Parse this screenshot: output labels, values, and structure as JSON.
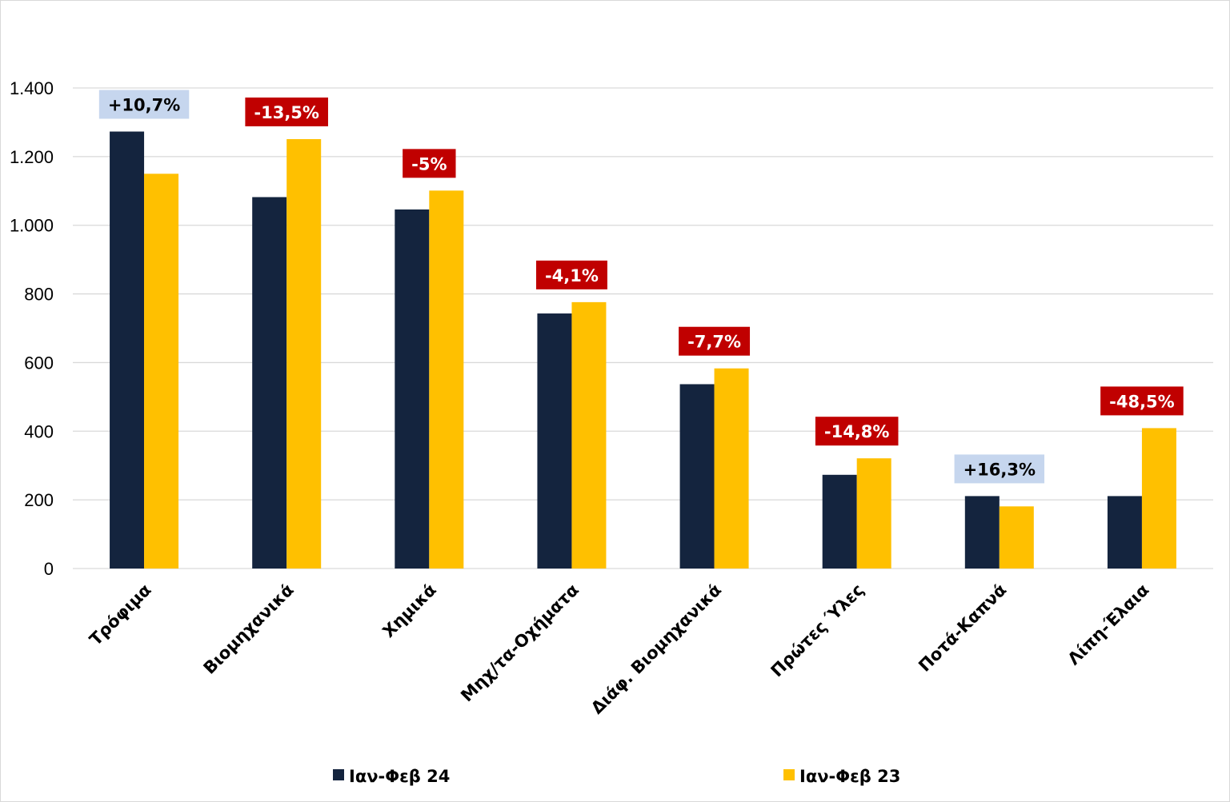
{
  "chart_data": {
    "type": "bar",
    "title": "",
    "xlabel": "",
    "ylabel": "",
    "ylim": [
      0,
      1400
    ],
    "yticks": [
      0,
      200,
      400,
      600,
      800,
      1000,
      1200,
      1400
    ],
    "ytick_labels": [
      "0",
      "200",
      "400",
      "600",
      "800",
      "1.000",
      "1.200",
      "1.400"
    ],
    "grid": true,
    "legend_position": "bottom",
    "categories": [
      "Τρόφιμα",
      "Βιομηχανικά",
      "Χημικά",
      "Μηχ/τα-Οχήματα",
      "Διάφ. Βιομηχανικά",
      "Πρώτες Ύλες",
      "Ποτά-Καπνά",
      "Λίπη-Έλαια"
    ],
    "series": [
      {
        "name": "Ιαν-Φεβ 24",
        "color": "#14243e",
        "values": [
          1273,
          1082,
          1046,
          743,
          537,
          273,
          211,
          211
        ]
      },
      {
        "name": "Ιαν-Φεβ 23",
        "color": "#ffc000",
        "values": [
          1150,
          1251,
          1101,
          776,
          583,
          321,
          181,
          409
        ]
      }
    ],
    "annotations": [
      {
        "category": "Τρόφιμα",
        "text": "+10,7%",
        "kind": "positive"
      },
      {
        "category": "Βιομηχανικά",
        "text": "-13,5%",
        "kind": "negative"
      },
      {
        "category": "Χημικά",
        "text": "-5%",
        "kind": "negative"
      },
      {
        "category": "Μηχ/τα-Οχήματα",
        "text": "-4,1%",
        "kind": "negative"
      },
      {
        "category": "Διάφ. Βιομηχανικά",
        "text": "-7,7%",
        "kind": "negative"
      },
      {
        "category": "Πρώτες Ύλες",
        "text": "-14,8%",
        "kind": "negative"
      },
      {
        "category": "Ποτά-Καπνά",
        "text": "+16,3%",
        "kind": "positive"
      },
      {
        "category": "Λίπη-Έλαια",
        "text": "-48,5%",
        "kind": "negative"
      }
    ],
    "annotation_colors": {
      "positive_bg": "#c6d6ee",
      "positive_text": "#000000",
      "negative_bg": "#c00000",
      "negative_text": "#ffffff"
    },
    "grid_color": "#d9d9d9"
  }
}
